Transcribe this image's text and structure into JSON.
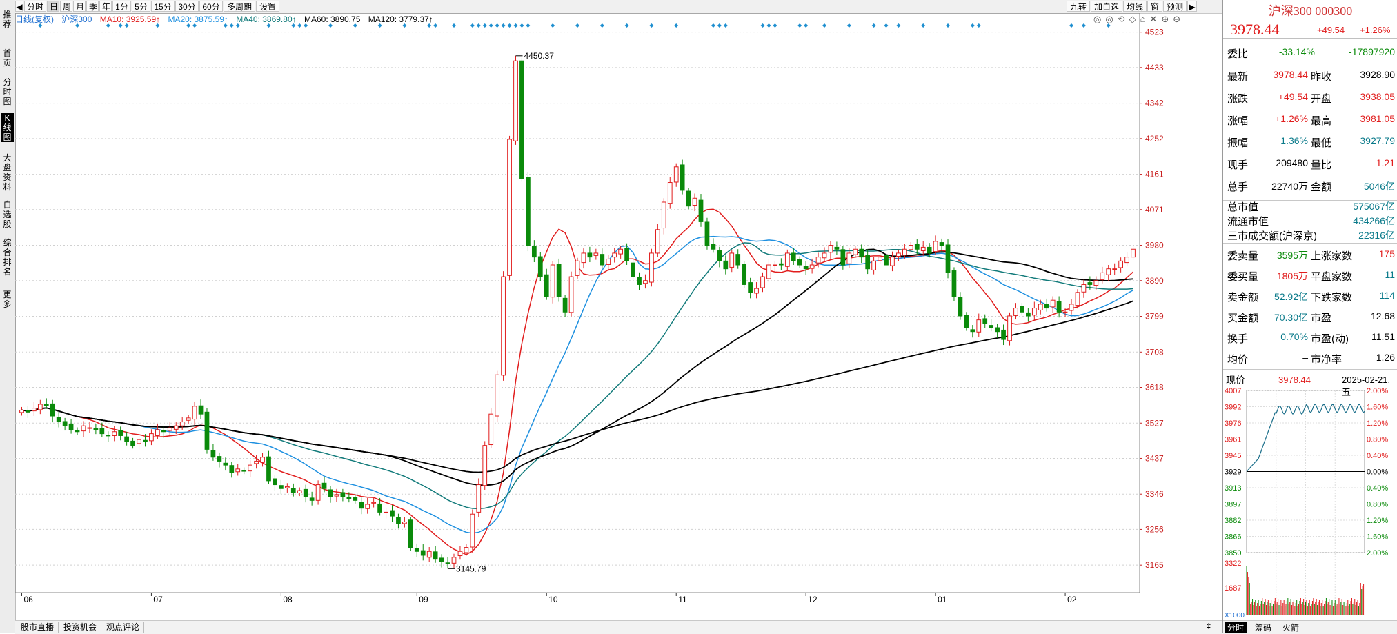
{
  "left_tabs": [
    "推荐",
    "首页",
    "分时图",
    "K线图",
    "大盘资料",
    "自选股",
    "综合排名",
    "更多"
  ],
  "toolbar": {
    "items": [
      "分时",
      "日",
      "周",
      "月",
      "季",
      "年",
      "1分",
      "5分",
      "15分",
      "30分",
      "60分",
      "多周期",
      "设置"
    ],
    "active": "日",
    "right_items": [
      "九转",
      "加自选",
      "均线",
      "窗",
      "预测"
    ]
  },
  "legend": {
    "title": "日线(复权)",
    "name": "沪深300",
    "ma10": "MA10: 3925.59↑",
    "ma20": "MA20: 3875.59↑",
    "ma40": "MA40: 3869.80↑",
    "ma60": "MA60: 3890.75",
    "ma120": "MA120: 3779.37↑"
  },
  "colors": {
    "up": "#e11d1d",
    "down": "#0a8a0a",
    "ma10": "#e11d1d",
    "ma20": "#1e90e0",
    "ma40": "#117a7a",
    "ma60": "#000000",
    "ma120": "#000000",
    "grid": "#d0d0d0",
    "axis": "#c81e1e"
  },
  "chart_data": {
    "type": "candlestick",
    "y_ticks": [
      "4523",
      "4433",
      "4342",
      "4252",
      "4161",
      "4071",
      "3980",
      "3890",
      "3799",
      "3708",
      "3618",
      "3527",
      "3437",
      "3346",
      "3256",
      "3165"
    ],
    "ylim": [
      3095,
      4540
    ],
    "x_labels": [
      "06",
      "07",
      "08",
      "09",
      "10",
      "11",
      "12",
      "01",
      "02"
    ],
    "high_annotation": "4450.37",
    "low_annotation": "3145.79",
    "closes": [
      3560,
      3555,
      3565,
      3575,
      3572,
      3545,
      3530,
      3520,
      3510,
      3505,
      3520,
      3515,
      3510,
      3500,
      3495,
      3505,
      3495,
      3480,
      3470,
      3485,
      3480,
      3500,
      3510,
      3505,
      3515,
      3520,
      3530,
      3540,
      3570,
      3550,
      3460,
      3440,
      3430,
      3420,
      3400,
      3410,
      3405,
      3420,
      3430,
      3440,
      3380,
      3370,
      3360,
      3365,
      3350,
      3355,
      3340,
      3330,
      3370,
      3360,
      3340,
      3345,
      3340,
      3335,
      3330,
      3310,
      3320,
      3325,
      3300,
      3300,
      3290,
      3270,
      3275,
      3210,
      3200,
      3190,
      3200,
      3180,
      3175,
      3170,
      3185,
      3200,
      3210,
      3295,
      3370,
      3470,
      3550,
      3650,
      3900,
      4250,
      4450,
      4150,
      3980,
      3950,
      3900,
      3850,
      3930,
      3850,
      3810,
      3900,
      3940,
      3960,
      3950,
      3960,
      3930,
      3945,
      3960,
      3970,
      3940,
      3900,
      3880,
      3890,
      3960,
      4020,
      4090,
      4140,
      4180,
      4120,
      4080,
      4100,
      4040,
      3980,
      3970,
      3940,
      3920,
      3960,
      3930,
      3880,
      3860,
      3870,
      3900,
      3930,
      3930,
      3930,
      3960,
      3940,
      3930,
      3920,
      3930,
      3950,
      3960,
      3980,
      3970,
      3930,
      3960,
      3970,
      3950,
      3920,
      3940,
      3950,
      3930,
      3950,
      3960,
      3970,
      3980,
      3970,
      3975,
      3960,
      3990,
      3980,
      3910,
      3850,
      3800,
      3770,
      3760,
      3790,
      3780,
      3770,
      3760,
      3740,
      3800,
      3820,
      3810,
      3800,
      3820,
      3830,
      3820,
      3840,
      3810,
      3810,
      3830,
      3860,
      3880,
      3880,
      3890,
      3910,
      3920,
      3920,
      3940,
      3950,
      3970
    ]
  },
  "bottom_tabs": [
    "股市直播",
    "投资机会",
    "观点评论"
  ],
  "right_panel": {
    "title": "沪深300 000300",
    "price": "3978.44",
    "change": "+49.54",
    "change_pct": "+1.26%",
    "weibi": {
      "label": "委比",
      "v1": "-33.14%",
      "v2": "-17897920"
    },
    "rows": [
      {
        "l1": "最新",
        "v1": "3978.44",
        "l2": "昨收",
        "v2": "3928.90",
        "c1": "red",
        "c2": "black"
      },
      {
        "l1": "涨跌",
        "v1": "+49.54",
        "l2": "开盘",
        "v2": "3938.05",
        "c1": "red",
        "c2": "red"
      },
      {
        "l1": "涨幅",
        "v1": "+1.26%",
        "l2": "最高",
        "v2": "3981.05",
        "c1": "red",
        "c2": "red"
      },
      {
        "l1": "振幅",
        "v1": "1.36%",
        "l2": "最低",
        "v2": "3927.79",
        "c1": "teal",
        "c2": "teal"
      },
      {
        "l1": "现手",
        "v1": "209480",
        "l2": "量比",
        "v2": "1.21",
        "c1": "black",
        "c2": "red"
      },
      {
        "l1": "总手",
        "v1": "22740万",
        "l2": "金额",
        "v2": "5046亿",
        "c1": "black",
        "c2": "teal"
      }
    ],
    "market": [
      {
        "l": "总市值",
        "v": "575067亿"
      },
      {
        "l": "流通市值",
        "v": "434266亿"
      },
      {
        "l": "三市成交额(沪深京)",
        "v": "22316亿"
      }
    ],
    "rows2": [
      {
        "l1": "委卖量",
        "v1": "3595万",
        "l2": "上涨家数",
        "v2": "175",
        "c1": "green",
        "c2": "red"
      },
      {
        "l1": "委买量",
        "v1": "1805万",
        "l2": "平盘家数",
        "v2": "11",
        "c1": "red",
        "c2": "teal"
      },
      {
        "l1": "卖金额",
        "v1": "52.92亿",
        "l2": "下跌家数",
        "v2": "114",
        "c1": "teal",
        "c2": "teal"
      },
      {
        "l1": "买金额",
        "v1": "70.30亿",
        "l2": "市盈",
        "v2": "12.68",
        "c1": "teal",
        "c2": "black"
      },
      {
        "l1": "换手",
        "v1": "0.70%",
        "l2": "市盈(动)",
        "v2": "11.51",
        "c1": "teal",
        "c2": "black"
      },
      {
        "l1": "均价",
        "v1": "–",
        "l2": "市净率",
        "v2": "1.26",
        "c1": "black",
        "c2": "black"
      }
    ],
    "mini": {
      "label": "现价",
      "price": "3978.44",
      "date": "2025-02-21,五",
      "left_ticks": [
        "4007",
        "3992",
        "3976",
        "3961",
        "3945",
        "3929",
        "3913",
        "3897",
        "3882",
        "3866",
        "3850"
      ],
      "right_ticks": [
        "2.00%",
        "1.60%",
        "1.20%",
        "0.80%",
        "0.40%",
        "0.00%",
        "0.40%",
        "0.80%",
        "1.20%",
        "1.60%",
        "2.00%"
      ],
      "vol_ticks": [
        "3322",
        "1687"
      ],
      "vol_unit": "X1000",
      "tabs": [
        "分时",
        "筹码",
        "火箭"
      ]
    }
  }
}
